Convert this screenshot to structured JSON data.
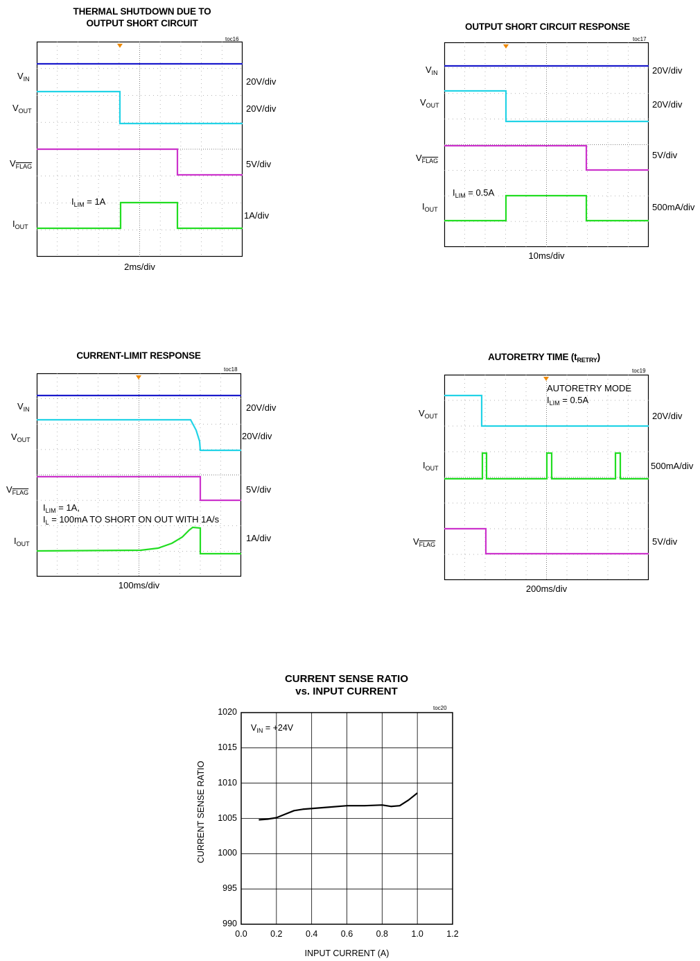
{
  "scopes": [
    {
      "id": "toc16",
      "title_lines": [
        "THERMAL SHUTDOWN DUE TO",
        "OUTPUT SHORT CIRCUIT"
      ],
      "toc": "toc16",
      "time_div": "2ms/div",
      "note": {
        "lim_label": "I",
        "lim_sub": "LIM",
        "lim_val": " = 1A"
      },
      "channels": [
        {
          "label": "V",
          "sub": "IN",
          "scale": "20V/div"
        },
        {
          "label": "V",
          "sub": "OUT",
          "scale": "20V/div"
        },
        {
          "label": "V",
          "sub": "FLAG",
          "scale": "5V/div"
        },
        {
          "label": "I",
          "sub": "OUT",
          "scale": "1A/div"
        }
      ]
    },
    {
      "id": "toc17",
      "title_lines": [
        "OUTPUT SHORT CIRCUIT RESPONSE"
      ],
      "toc": "toc17",
      "time_div": "10ms/div",
      "note": {
        "lim_label": "I",
        "lim_sub": "LIM",
        "lim_val": " = 0.5A"
      },
      "channels": [
        {
          "label": "V",
          "sub": "IN",
          "scale": "20V/div"
        },
        {
          "label": "V",
          "sub": "OUT",
          "scale": "20V/div"
        },
        {
          "label": "V",
          "sub": "FLAG",
          "scale": "5V/div"
        },
        {
          "label": "I",
          "sub": "OUT",
          "scale": "500mA/div"
        }
      ]
    },
    {
      "id": "toc18",
      "title_lines": [
        "CURRENT-LIMIT RESPONSE"
      ],
      "toc": "toc18",
      "time_div": "100ms/div",
      "note": {
        "lim_label": "I",
        "lim_sub": "LIM",
        "lim_val": " = 1A,",
        "l_label": "I",
        "l_sub": "L",
        "l_val": " = 100mA TO SHORT ON OUT WITH 1A/s"
      },
      "channels": [
        {
          "label": "V",
          "sub": "IN",
          "scale": "20V/div"
        },
        {
          "label": "V",
          "sub": "OUT",
          "scale": "20V/div"
        },
        {
          "label": "V",
          "sub": "FLAG",
          "scale": "5V/div"
        },
        {
          "label": "I",
          "sub": "OUT",
          "scale": "1A/div"
        }
      ]
    },
    {
      "id": "toc19",
      "title_main": "AUTORETRY TIME (t",
      "title_sub": "RETRY",
      "title_end": ")",
      "toc": "toc19",
      "time_div": "200ms/div",
      "note": {
        "mode": "AUTORETRY MODE",
        "lim_label": "I",
        "lim_sub": "LIM",
        "lim_val": " = 0.5A"
      },
      "channels": [
        {
          "label": "V",
          "sub": "OUT",
          "scale": "20V/div"
        },
        {
          "label": "I",
          "sub": "OUT",
          "scale": "500mA/div"
        },
        {
          "label": "V",
          "sub": "FLAG",
          "scale": "5V/div"
        }
      ]
    }
  ],
  "colors": {
    "vin": "#1a1acc",
    "vout": "#22d3e6",
    "vflag": "#cc33cc",
    "iout": "#22dd22",
    "trigger": "#ee8800"
  },
  "chart_data": {
    "type": "line",
    "title_lines": [
      "CURRENT SENSE RATIO",
      "vs. INPUT CURRENT"
    ],
    "toc": "toc20",
    "annotation": {
      "label": "V",
      "sub": "IN",
      "val": " = +24V"
    },
    "xlabel": "INPUT CURRENT (A)",
    "ylabel": "CURRENT SENSE RATIO",
    "xlim": [
      0.0,
      1.2
    ],
    "ylim": [
      990,
      1020
    ],
    "xticks": [
      "0.0",
      "0.2",
      "0.4",
      "0.6",
      "0.8",
      "1.0",
      "1.2"
    ],
    "yticks": [
      "990",
      "995",
      "1000",
      "1005",
      "1010",
      "1015",
      "1020"
    ],
    "grid": true,
    "series": [
      {
        "x": [
          0.1,
          0.15,
          0.2,
          0.25,
          0.3,
          0.35,
          0.4,
          0.5,
          0.6,
          0.7,
          0.8,
          0.85,
          0.9,
          0.95,
          1.0
        ],
        "y": [
          1004.8,
          1004.9,
          1005.1,
          1005.6,
          1006.1,
          1006.3,
          1006.4,
          1006.6,
          1006.8,
          1006.8,
          1006.9,
          1006.7,
          1006.8,
          1007.6,
          1008.6
        ]
      }
    ]
  }
}
